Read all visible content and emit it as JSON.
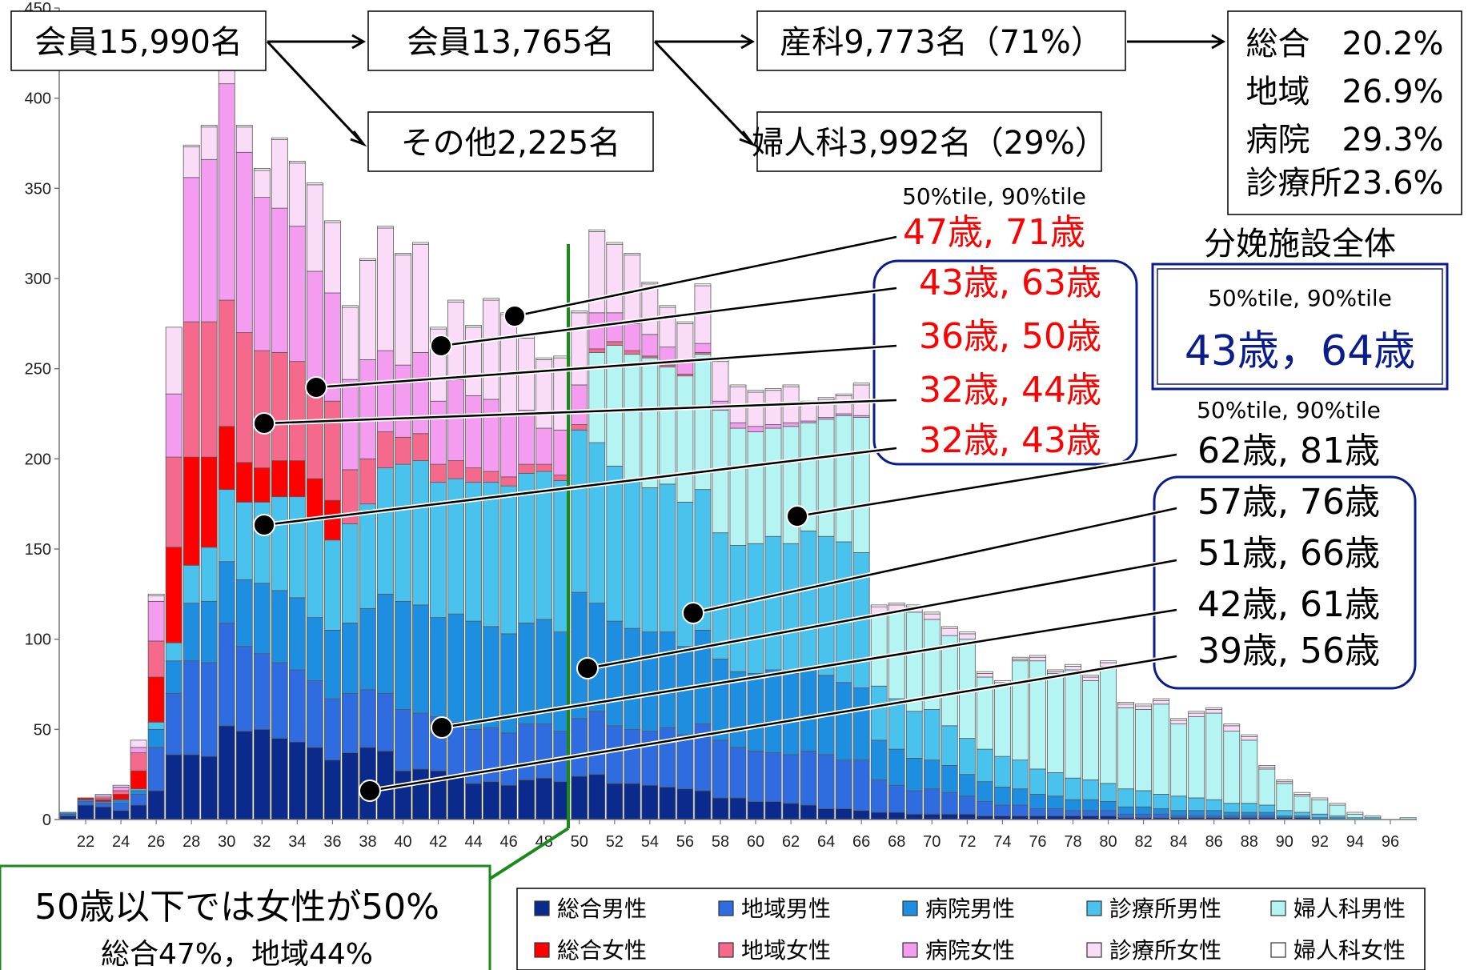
{
  "chart_data": {
    "type": "bar",
    "stacked": true,
    "ylim": [
      0,
      450
    ],
    "yticks": [
      "0",
      "50",
      "100",
      "150",
      "200",
      "250",
      "300",
      "350",
      "400",
      "450"
    ],
    "xtick_labels": [
      "22",
      "24",
      "26",
      "28",
      "30",
      "32",
      "34",
      "36",
      "38",
      "40",
      "42",
      "44",
      "46",
      "48",
      "50",
      "52",
      "54",
      "56",
      "58",
      "60",
      "62",
      "64",
      "66",
      "68",
      "70",
      "72",
      "74",
      "76",
      "78",
      "80",
      "82",
      "84",
      "86",
      "88",
      "90",
      "92",
      "94",
      "96"
    ],
    "x_ages": [
      21,
      22,
      23,
      24,
      25,
      26,
      27,
      28,
      29,
      30,
      31,
      32,
      33,
      34,
      35,
      36,
      37,
      38,
      39,
      40,
      41,
      42,
      43,
      44,
      45,
      46,
      47,
      48,
      49,
      50,
      51,
      52,
      53,
      54,
      55,
      56,
      57,
      58,
      59,
      60,
      61,
      62,
      63,
      64,
      65,
      66,
      67,
      68,
      69,
      70,
      71,
      72,
      73,
      74,
      75,
      76,
      77,
      78,
      79,
      80,
      81,
      82,
      83,
      84,
      85,
      86,
      87,
      88,
      89,
      90,
      91,
      92,
      93,
      94,
      95,
      96,
      97
    ],
    "series": [
      {
        "name": "総合男性",
        "color": "#0a2a8c",
        "values": [
          2,
          8,
          7,
          5,
          8,
          16,
          36,
          36,
          35,
          52,
          49,
          50,
          45,
          43,
          40,
          33,
          37,
          40,
          38,
          27,
          28,
          27,
          24,
          20,
          21,
          19,
          22,
          23,
          21,
          24,
          25,
          20,
          20,
          19,
          18,
          17,
          16,
          12,
          12,
          10,
          10,
          9,
          8,
          6,
          6,
          5,
          4,
          4,
          3,
          3,
          3,
          3,
          2,
          2,
          2,
          2,
          2,
          2,
          2,
          2,
          1,
          1,
          1,
          1,
          1,
          1,
          1,
          1,
          1,
          1,
          1,
          0,
          0,
          0,
          0,
          0,
          0
        ]
      },
      {
        "name": "地域男性",
        "color": "#2f6ce0",
        "values": [
          1,
          2,
          2,
          4,
          6,
          24,
          34,
          52,
          52,
          57,
          47,
          42,
          42,
          40,
          37,
          34,
          33,
          32,
          32,
          34,
          31,
          30,
          30,
          30,
          30,
          29,
          31,
          30,
          28,
          32,
          35,
          32,
          30,
          30,
          33,
          30,
          37,
          32,
          28,
          28,
          27,
          27,
          30,
          30,
          27,
          28,
          18,
          15,
          13,
          14,
          12,
          10,
          8,
          6,
          6,
          4,
          4,
          3,
          3,
          3,
          2,
          2,
          2,
          1,
          1,
          1,
          1,
          1,
          1,
          0,
          0,
          0,
          0,
          0,
          0,
          0,
          0
        ]
      },
      {
        "name": "病院男性",
        "color": "#1e8fe0",
        "values": [
          1,
          1,
          1,
          2,
          2,
          10,
          18,
          32,
          34,
          34,
          37,
          39,
          40,
          40,
          35,
          38,
          39,
          45,
          55,
          60,
          60,
          55,
          60,
          60,
          56,
          55,
          56,
          58,
          55,
          70,
          60,
          58,
          56,
          55,
          53,
          49,
          52,
          45,
          42,
          43,
          46,
          45,
          46,
          44,
          43,
          40,
          22,
          20,
          18,
          16,
          15,
          12,
          11,
          10,
          9,
          8,
          7,
          6,
          6,
          5,
          4,
          4,
          3,
          3,
          3,
          3,
          2,
          2,
          2,
          1,
          1,
          1,
          1,
          0,
          0,
          0,
          0
        ]
      },
      {
        "name": "診療所男性",
        "color": "#49c3ee",
        "values": [
          0,
          0,
          0,
          0,
          1,
          4,
          10,
          21,
          30,
          40,
          43,
          45,
          52,
          56,
          55,
          50,
          55,
          58,
          70,
          76,
          80,
          75,
          75,
          77,
          80,
          82,
          83,
          82,
          84,
          90,
          89,
          86,
          82,
          80,
          82,
          80,
          78,
          70,
          70,
          72,
          74,
          72,
          76,
          77,
          78,
          75,
          30,
          28,
          26,
          28,
          22,
          20,
          18,
          17,
          16,
          14,
          13,
          12,
          11,
          10,
          10,
          9,
          8,
          8,
          7,
          6,
          5,
          5,
          4,
          3,
          2,
          2,
          1,
          1,
          1,
          0,
          0
        ]
      },
      {
        "name": "婦人科男性",
        "color": "#b4f4f2",
        "values": [
          0,
          0,
          0,
          0,
          0,
          0,
          0,
          0,
          0,
          0,
          0,
          0,
          0,
          0,
          0,
          0,
          0,
          0,
          0,
          0,
          0,
          0,
          0,
          0,
          0,
          0,
          0,
          0,
          0,
          0,
          50,
          67,
          70,
          72,
          65,
          70,
          75,
          68,
          65,
          62,
          60,
          65,
          60,
          65,
          70,
          75,
          40,
          48,
          55,
          50,
          50,
          55,
          40,
          40,
          55,
          60,
          55,
          60,
          55,
          65,
          45,
          45,
          50,
          40,
          45,
          48,
          40,
          35,
          20,
          15,
          9,
          8,
          6,
          2,
          1,
          0,
          1
        ]
      },
      {
        "name": "総合女性",
        "color": "#ff0000",
        "values": [
          0,
          1,
          1,
          3,
          10,
          25,
          53,
          60,
          50,
          35,
          22,
          19,
          20,
          20,
          22,
          22,
          0,
          0,
          0,
          0,
          0,
          0,
          0,
          0,
          0,
          0,
          0,
          0,
          0,
          0,
          0,
          0,
          0,
          0,
          0,
          0,
          0,
          0,
          0,
          0,
          0,
          0,
          0,
          0,
          0,
          0,
          0,
          0,
          0,
          0,
          0,
          0,
          0,
          0,
          0,
          0,
          0,
          0,
          0,
          0,
          0,
          0,
          0,
          0,
          0,
          0,
          0,
          0,
          0,
          0,
          0,
          0,
          0,
          0,
          0,
          0,
          0
        ]
      },
      {
        "name": "地域女性",
        "color": "#f4698c",
        "values": [
          0,
          0,
          1,
          2,
          10,
          20,
          50,
          75,
          75,
          70,
          72,
          65,
          60,
          55,
          50,
          55,
          30,
          25,
          20,
          15,
          15,
          10,
          10,
          8,
          6,
          5,
          5,
          4,
          3,
          3,
          2,
          2,
          2,
          1,
          1,
          1,
          1,
          0,
          0,
          0,
          0,
          0,
          0,
          0,
          0,
          0,
          0,
          0,
          0,
          0,
          0,
          0,
          0,
          0,
          0,
          0,
          0,
          0,
          0,
          0,
          0,
          0,
          0,
          0,
          0,
          0,
          0,
          0,
          0,
          0,
          0,
          0,
          0,
          0,
          0,
          0,
          0
        ]
      },
      {
        "name": "病院女性",
        "color": "#f49cf0",
        "values": [
          0,
          0,
          1,
          2,
          3,
          22,
          35,
          80,
          90,
          120,
          100,
          85,
          80,
          75,
          65,
          60,
          50,
          55,
          45,
          40,
          45,
          35,
          45,
          40,
          40,
          35,
          30,
          20,
          25,
          22,
          20,
          16,
          15,
          12,
          10,
          8,
          5,
          5,
          3,
          3,
          2,
          2,
          1,
          1,
          1,
          1,
          0,
          0,
          0,
          0,
          0,
          0,
          0,
          0,
          0,
          0,
          0,
          0,
          0,
          0,
          0,
          0,
          0,
          0,
          0,
          0,
          0,
          0,
          0,
          0,
          0,
          0,
          0,
          0,
          0,
          0,
          0
        ]
      },
      {
        "name": "診療所女性",
        "color": "#fadcf8",
        "values": [
          0,
          0,
          1,
          1,
          4,
          3,
          37,
          17,
          18,
          20,
          14,
          15,
          38,
          35,
          48,
          39,
          40,
          55,
          68,
          61,
          60,
          40,
          43,
          38,
          55,
          55,
          40,
          38,
          40,
          40,
          45,
          38,
          38,
          28,
          22,
          20,
          32,
          22,
          20,
          19,
          19,
          20,
          10,
          10,
          10,
          17,
          4,
          4,
          3,
          3,
          4,
          3,
          2,
          1,
          1,
          2,
          1,
          2,
          2,
          2,
          2,
          2,
          2,
          2,
          2,
          2,
          3,
          2,
          1,
          1,
          1,
          0,
          0,
          0,
          0,
          0,
          0
        ]
      },
      {
        "name": "婦人科女性",
        "color": "#ffffff",
        "values": [
          0,
          0,
          0,
          0,
          0,
          1,
          0,
          1,
          1,
          3,
          1,
          1,
          1,
          1,
          1,
          1,
          1,
          1,
          1,
          1,
          1,
          1,
          1,
          1,
          1,
          1,
          1,
          1,
          1,
          1,
          1,
          1,
          1,
          1,
          1,
          1,
          1,
          1,
          1,
          1,
          1,
          1,
          1,
          1,
          1,
          1,
          1,
          1,
          1,
          1,
          1,
          1,
          1,
          1,
          1,
          1,
          1,
          1,
          1,
          1,
          1,
          1,
          1,
          1,
          1,
          1,
          1,
          1,
          1,
          1,
          1,
          1,
          1,
          1,
          0,
          0,
          0
        ]
      }
    ],
    "marker_line_label": "50"
  },
  "flow": {
    "members_total": "会員15,990名",
    "members_active": "会員13,765名",
    "others": "その他2,225名",
    "obstetrics": "産科9,773名（71%）",
    "gynecology": "婦人科3,992名（29%）",
    "breakdown": [
      "総合　20.2%",
      "地域　26.9%",
      "病院　29.3%",
      "診療所23.6%"
    ]
  },
  "female_stats": {
    "header": "50%tile, 90%tile",
    "rows": [
      "47歳, 71歳",
      "43歳, 63歳",
      "36歳, 50歳",
      "32歳, 44歳",
      "32歳, 43歳"
    ]
  },
  "male_stats": {
    "header": "50%tile, 90%tile",
    "rows": [
      "62歳, 81歳",
      "57歳, 76歳",
      "51歳, 66歳",
      "42歳, 61歳",
      "39歳, 56歳"
    ]
  },
  "overall": {
    "title": "分娩施設全体",
    "header": "50%tile, 90%tile",
    "value": "43歳，64歳"
  },
  "note": {
    "line1": "50歳以下では女性が50%",
    "line2": "総合47%，地域44%"
  },
  "legend": [
    {
      "label": "総合男性",
      "color": "#0a2a8c"
    },
    {
      "label": "地域男性",
      "color": "#2f6ce0"
    },
    {
      "label": "病院男性",
      "color": "#1e8fe0"
    },
    {
      "label": "診療所男性",
      "color": "#49c3ee"
    },
    {
      "label": "婦人科男性",
      "color": "#b4f4f2"
    },
    {
      "label": "総合女性",
      "color": "#ff0000"
    },
    {
      "label": "地域女性",
      "color": "#f4698c"
    },
    {
      "label": "病院女性",
      "color": "#f49cf0"
    },
    {
      "label": "診療所女性",
      "color": "#fadcf8"
    },
    {
      "label": "婦人科女性",
      "color": "#ffffff"
    }
  ],
  "colors": {
    "green_line": "#1a8a1a",
    "navy_box": "#0b1d8c"
  }
}
